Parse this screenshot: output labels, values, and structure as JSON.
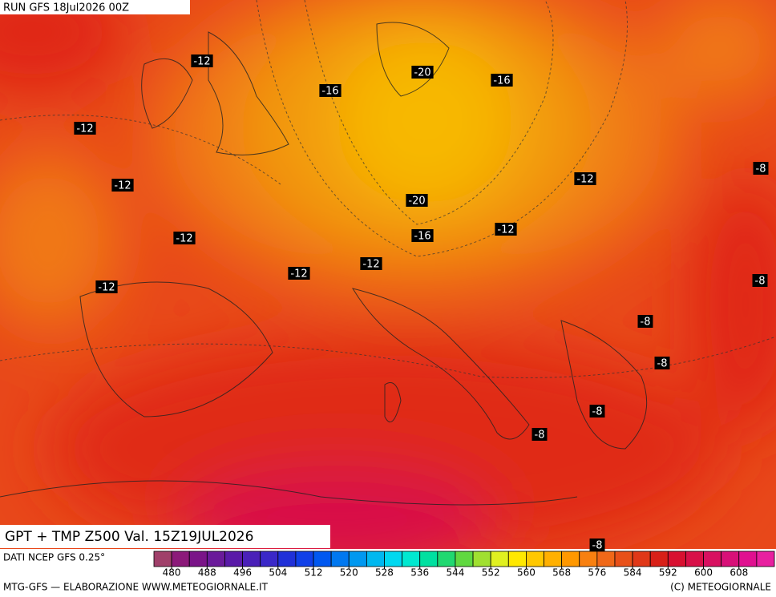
{
  "header": {
    "run": "RUN GFS 18Jul2026 00Z"
  },
  "map": {
    "title": "GPT + TMP Z500 Val. 15Z19JUL2026",
    "contour_labels": [
      -12,
      -20,
      -16,
      -16,
      -12,
      -8,
      -12,
      -12,
      -20,
      -12,
      -16,
      -12,
      -12,
      -12,
      -12,
      -8,
      -8,
      -8,
      -8,
      -8,
      -8
    ]
  },
  "footer": {
    "source": "DATI NCEP GFS 0.25°",
    "credit": "MTG-GFS — ELABORAZIONE WWW.METEOGIORNALE.IT",
    "copyright": "(C) METEOGIORNALE"
  },
  "colorbar": {
    "lim": [
      476,
      616
    ],
    "ticks": [
      480,
      488,
      496,
      504,
      512,
      520,
      528,
      536,
      544,
      552,
      560,
      568,
      576,
      584,
      592,
      600,
      608
    ],
    "colors": [
      "#a0406a",
      "#8c1a7a",
      "#7a1488",
      "#6a1a9a",
      "#5a1aa8",
      "#4a20b8",
      "#3a28c8",
      "#2030d8",
      "#1040e8",
      "#0058f0",
      "#0078f0",
      "#0098f0",
      "#00b8f0",
      "#00d8f0",
      "#00e8d0",
      "#00e0a0",
      "#20d870",
      "#60d840",
      "#a0e030",
      "#e0f020",
      "#ffe800",
      "#ffc800",
      "#ffb000",
      "#ff9800",
      "#f88010",
      "#f06818",
      "#e85018",
      "#e03818",
      "#d82018",
      "#d81030",
      "#d81048",
      "#d81060",
      "#d81078",
      "#e01090",
      "#e820a0"
    ]
  }
}
